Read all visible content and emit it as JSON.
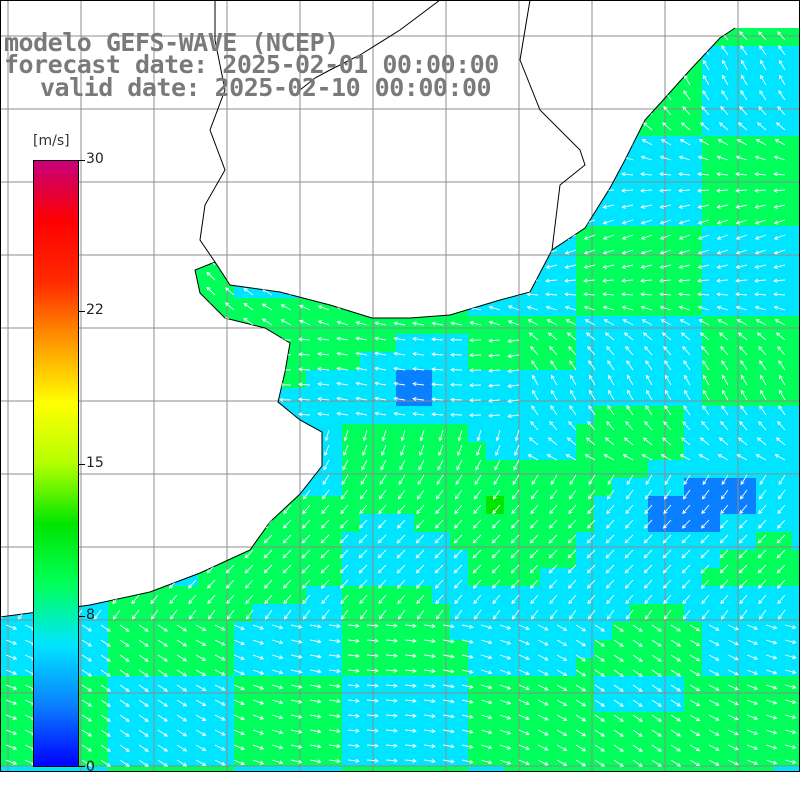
{
  "title": {
    "line1": "modelo GEFS-WAVE (NCEP)",
    "line2": "forecast date: 2025-02-01 00:00:00",
    "line3": "valid date: 2025-02-10 00:00:00"
  },
  "colorbar": {
    "unit": "[m/s]",
    "ticks": [
      "30",
      "22",
      "15",
      "8",
      "0"
    ],
    "tick_values": [
      30,
      22,
      15,
      8,
      0
    ],
    "min": 0,
    "max": 30,
    "colors": [
      "#0000ff",
      "#0a7fff",
      "#00e5ff",
      "#00ff5a",
      "#00e600",
      "#b4ff00",
      "#ffff00",
      "#ff9a00",
      "#ff2a00",
      "#ff0000",
      "#c8007a"
    ]
  },
  "colors": {
    "land": "#ffffff",
    "coast": "#000000",
    "grid": "#8c8c8c",
    "arrow": "#ffffff",
    "title_text": "#7a7a7a"
  }
}
